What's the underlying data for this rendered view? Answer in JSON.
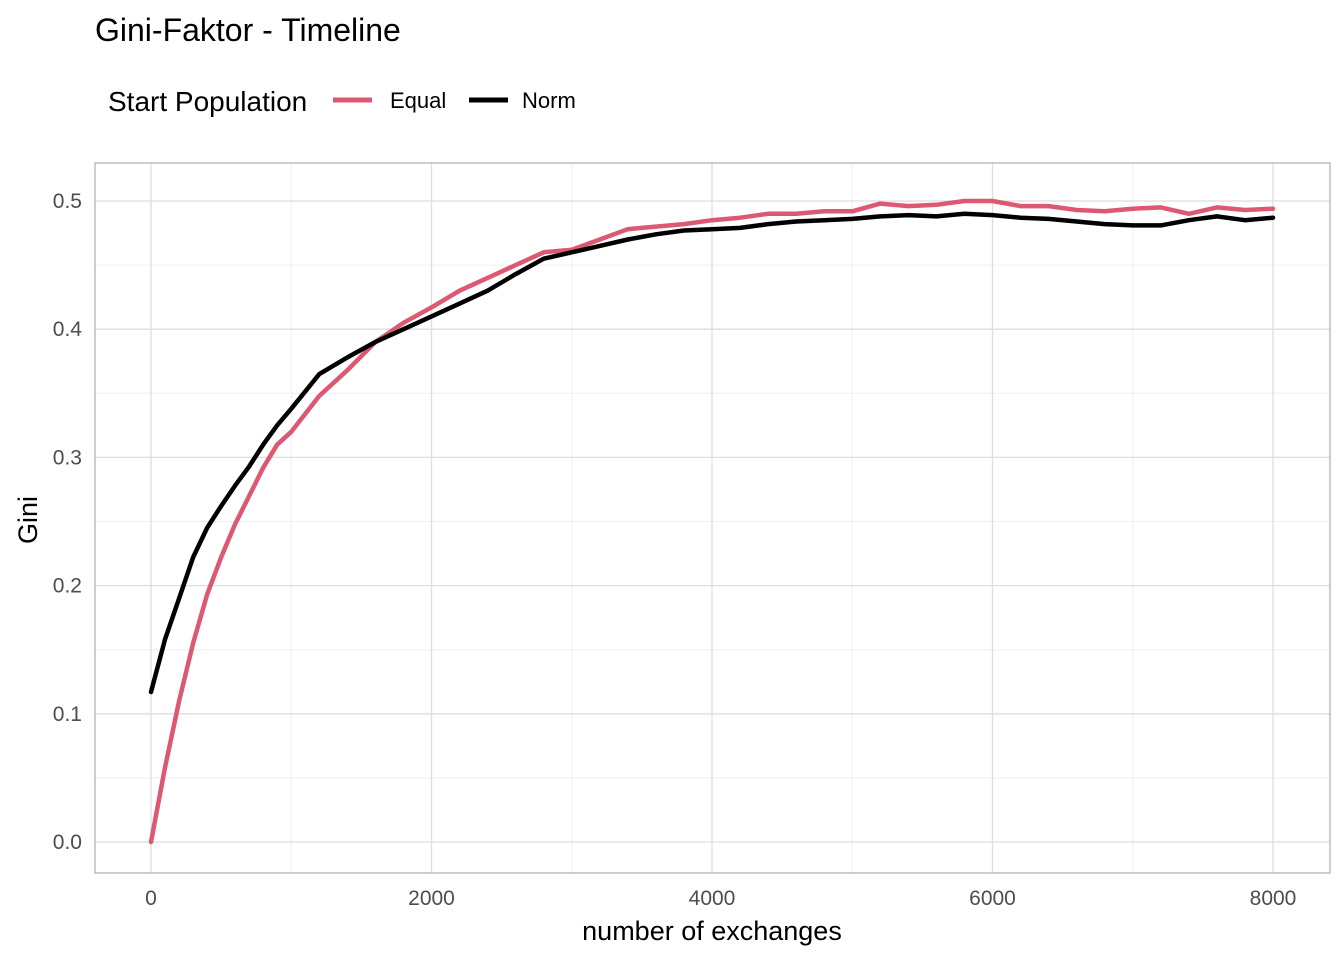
{
  "chart_data": {
    "type": "line",
    "title": "Gini-Faktor - Timeline",
    "xlabel": "number of exchanges",
    "ylabel": "Gini",
    "xlim": [
      0,
      8000
    ],
    "ylim": [
      0,
      0.5
    ],
    "x_ticks": [
      0,
      2000,
      4000,
      6000,
      8000
    ],
    "x_tick_labels": [
      "0",
      "2000",
      "4000",
      "6000",
      "8000"
    ],
    "y_ticks": [
      0,
      0.1,
      0.2,
      0.3,
      0.4,
      0.5
    ],
    "y_tick_labels": [
      "0.0",
      "0.1",
      "0.2",
      "0.3",
      "0.4",
      "0.5"
    ],
    "grid": true,
    "legend": {
      "title": "Start Population",
      "position": "top-left"
    },
    "series": [
      {
        "name": "Equal",
        "color": "#dc5971",
        "x": [
          0,
          100,
          200,
          300,
          400,
          500,
          600,
          700,
          800,
          900,
          1000,
          1200,
          1400,
          1600,
          1800,
          2000,
          2200,
          2400,
          2600,
          2800,
          3000,
          3200,
          3400,
          3600,
          3800,
          4000,
          4200,
          4400,
          4600,
          4800,
          5000,
          5200,
          5400,
          5600,
          5800,
          6000,
          6200,
          6400,
          6600,
          6800,
          7000,
          7200,
          7400,
          7600,
          7800,
          8000
        ],
        "y": [
          0.0,
          0.058,
          0.11,
          0.155,
          0.193,
          0.222,
          0.248,
          0.27,
          0.292,
          0.31,
          0.32,
          0.348,
          0.368,
          0.39,
          0.405,
          0.417,
          0.43,
          0.44,
          0.45,
          0.46,
          0.462,
          0.47,
          0.478,
          0.48,
          0.482,
          0.485,
          0.487,
          0.49,
          0.49,
          0.492,
          0.492,
          0.498,
          0.496,
          0.497,
          0.5,
          0.5,
          0.496,
          0.496,
          0.493,
          0.492,
          0.494,
          0.495,
          0.49,
          0.495,
          0.493,
          0.494
        ]
      },
      {
        "name": "Norm",
        "color": "#000000",
        "x": [
          0,
          100,
          200,
          300,
          400,
          500,
          600,
          700,
          800,
          900,
          1000,
          1200,
          1400,
          1600,
          1800,
          2000,
          2200,
          2400,
          2600,
          2800,
          3000,
          3200,
          3400,
          3600,
          3800,
          4000,
          4200,
          4400,
          4600,
          4800,
          5000,
          5200,
          5400,
          5600,
          5800,
          6000,
          6200,
          6400,
          6600,
          6800,
          7000,
          7200,
          7400,
          7600,
          7800,
          8000
        ],
        "y": [
          0.117,
          0.158,
          0.19,
          0.222,
          0.245,
          0.262,
          0.278,
          0.293,
          0.31,
          0.325,
          0.338,
          0.365,
          0.378,
          0.39,
          0.4,
          0.41,
          0.42,
          0.43,
          0.443,
          0.455,
          0.46,
          0.465,
          0.47,
          0.474,
          0.477,
          0.478,
          0.479,
          0.482,
          0.484,
          0.485,
          0.486,
          0.488,
          0.489,
          0.488,
          0.49,
          0.489,
          0.487,
          0.486,
          0.484,
          0.482,
          0.481,
          0.481,
          0.485,
          0.488,
          0.485,
          0.487
        ]
      }
    ]
  }
}
